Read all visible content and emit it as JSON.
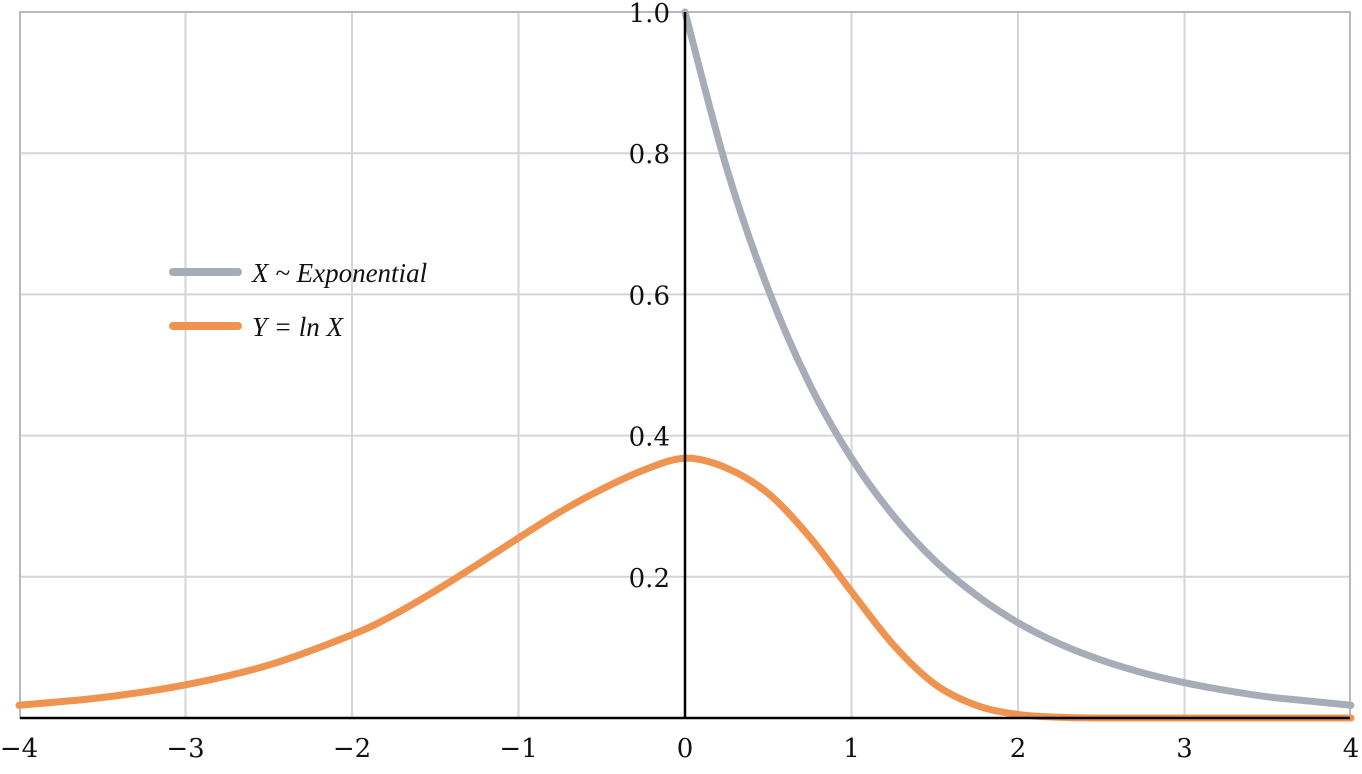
{
  "chart_data": {
    "type": "line",
    "title": "",
    "xlabel": "",
    "ylabel": "",
    "xlim": [
      -4,
      4
    ],
    "ylim": [
      0,
      1.0
    ],
    "grid": true,
    "legend_position": "middle-left",
    "x_ticks": [
      -4,
      -3,
      -2,
      -1,
      0,
      1,
      2,
      3,
      4
    ],
    "x_tick_labels": [
      "−4",
      "−3",
      "−2",
      "−1",
      "0",
      "1",
      "2",
      "3",
      "4"
    ],
    "y_ticks": [
      0.2,
      0.4,
      0.6,
      0.8,
      1.0
    ],
    "y_tick_labels": [
      "0.2",
      "0.4",
      "0.6",
      "0.8",
      "1.0"
    ],
    "series": [
      {
        "name": "X ~ Exponential",
        "color": "#a8acb7",
        "x": [
          0,
          0.25,
          0.5,
          0.75,
          1.0,
          1.25,
          1.5,
          1.75,
          2.0,
          2.25,
          2.5,
          2.75,
          3.0,
          3.25,
          3.5,
          3.75,
          4.0
        ],
        "y": [
          1.0,
          0.779,
          0.607,
          0.472,
          0.368,
          0.287,
          0.223,
          0.174,
          0.135,
          0.105,
          0.082,
          0.064,
          0.05,
          0.039,
          0.03,
          0.024,
          0.018
        ]
      },
      {
        "name": "Y = ln X",
        "color": "#ef9350",
        "x": [
          -4,
          -3.5,
          -3,
          -2.5,
          -2,
          -1.75,
          -1.5,
          -1.25,
          -1,
          -0.75,
          -0.5,
          -0.25,
          0,
          0.25,
          0.5,
          0.75,
          1.0,
          1.25,
          1.5,
          1.75,
          2.0,
          2.25,
          2.5,
          3.0,
          3.5,
          4.0
        ],
        "y": [
          0.018,
          0.029,
          0.047,
          0.075,
          0.118,
          0.146,
          0.18,
          0.217,
          0.255,
          0.292,
          0.324,
          0.351,
          0.368,
          0.354,
          0.318,
          0.256,
          0.179,
          0.104,
          0.048,
          0.018,
          0.005,
          0.001,
          0.0,
          0.0,
          0.0,
          0.0
        ]
      }
    ]
  }
}
